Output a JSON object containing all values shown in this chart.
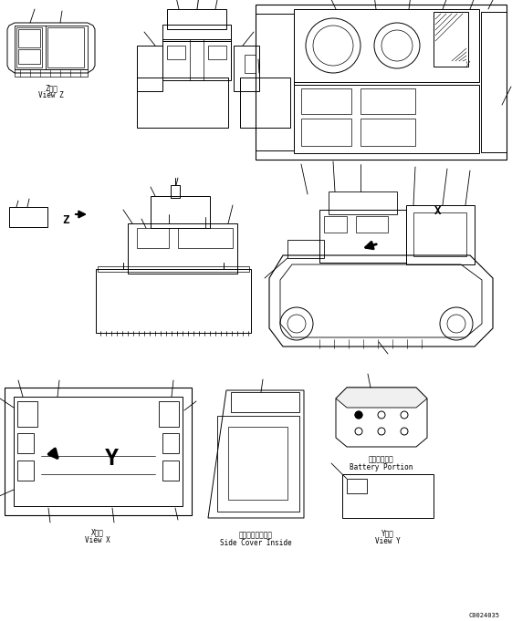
{
  "bg_color": "#ffffff",
  "line_color": "#000000",
  "fig_width": 5.61,
  "fig_height": 6.81,
  "dpi": 100,
  "labels": {
    "view_z_jp": "Z　視",
    "view_z_en": "View Z",
    "view_x_jp": "X　視",
    "view_x_en": "View X",
    "side_cover_jp": "サイドカバー内側",
    "side_cover_en": "Side Cover Inside",
    "view_y_jp": "Y　視",
    "view_y_en": "View Y",
    "battery_jp": "バッテリー頲",
    "battery_en": "Battery Portion",
    "code": "C0024035"
  },
  "font_size_label": 5.5,
  "font_size_code": 5.0
}
